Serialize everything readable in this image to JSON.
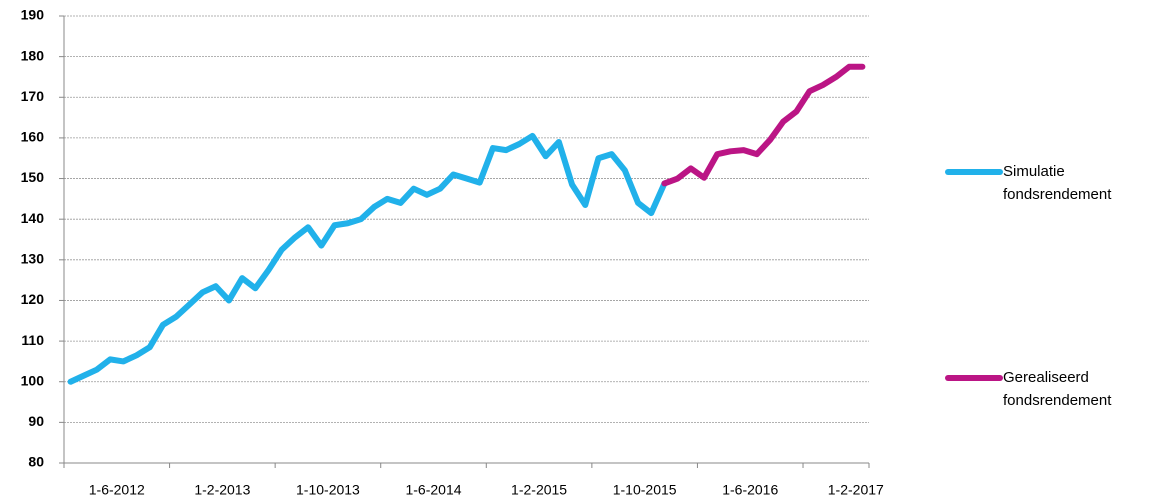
{
  "chart_data": {
    "type": "line",
    "categories": [
      "1-6-2012",
      null,
      null,
      null,
      null,
      null,
      null,
      null,
      "1-2-2013",
      null,
      null,
      null,
      null,
      null,
      null,
      null,
      "1-10-2013",
      null,
      null,
      null,
      null,
      null,
      null,
      null,
      "1-6-2014",
      null,
      null,
      null,
      null,
      null,
      null,
      null,
      "1-2-2015",
      null,
      null,
      null,
      null,
      null,
      null,
      null,
      "1-10-2015",
      null,
      null,
      null,
      null,
      null,
      null,
      null,
      "1-6-2016",
      null,
      null,
      null,
      null,
      null,
      null,
      null,
      "1-2-2017",
      null,
      null,
      null,
      null
    ],
    "series": [
      {
        "name": "Simulatie fondsrendement",
        "color": "#21b1ea",
        "values": [
          100,
          101.5,
          103,
          105.5,
          105,
          106.5,
          108.5,
          114,
          116,
          119,
          122,
          123.5,
          120,
          125.5,
          123,
          127.5,
          132.5,
          135.5,
          138,
          133.5,
          138.5,
          139,
          140,
          143,
          145,
          144,
          147.5,
          146,
          147.5,
          151,
          150,
          149,
          157.5,
          157,
          158.5,
          160.5,
          155.5,
          159,
          148.5,
          143.5,
          155,
          156,
          152,
          144,
          141.5,
          148.8,
          null,
          null,
          null,
          null,
          null,
          null,
          null,
          null,
          null,
          null,
          null,
          null,
          null,
          null,
          null
        ]
      },
      {
        "name": "Gerealiseerd fondsrendement",
        "color": "#bb1585",
        "values": [
          null,
          null,
          null,
          null,
          null,
          null,
          null,
          null,
          null,
          null,
          null,
          null,
          null,
          null,
          null,
          null,
          null,
          null,
          null,
          null,
          null,
          null,
          null,
          null,
          null,
          null,
          null,
          null,
          null,
          null,
          null,
          null,
          null,
          null,
          null,
          null,
          null,
          null,
          null,
          null,
          null,
          null,
          null,
          null,
          null,
          148.8,
          150,
          152.5,
          150.2,
          156,
          156.7,
          157,
          156,
          159.5,
          164,
          166.5,
          171.5,
          173,
          175,
          177.5,
          177.5
        ]
      }
    ],
    "ylim": [
      80,
      190
    ],
    "yticks": [
      80,
      90,
      100,
      110,
      120,
      130,
      140,
      150,
      160,
      170,
      180,
      190
    ],
    "grid": true
  }
}
